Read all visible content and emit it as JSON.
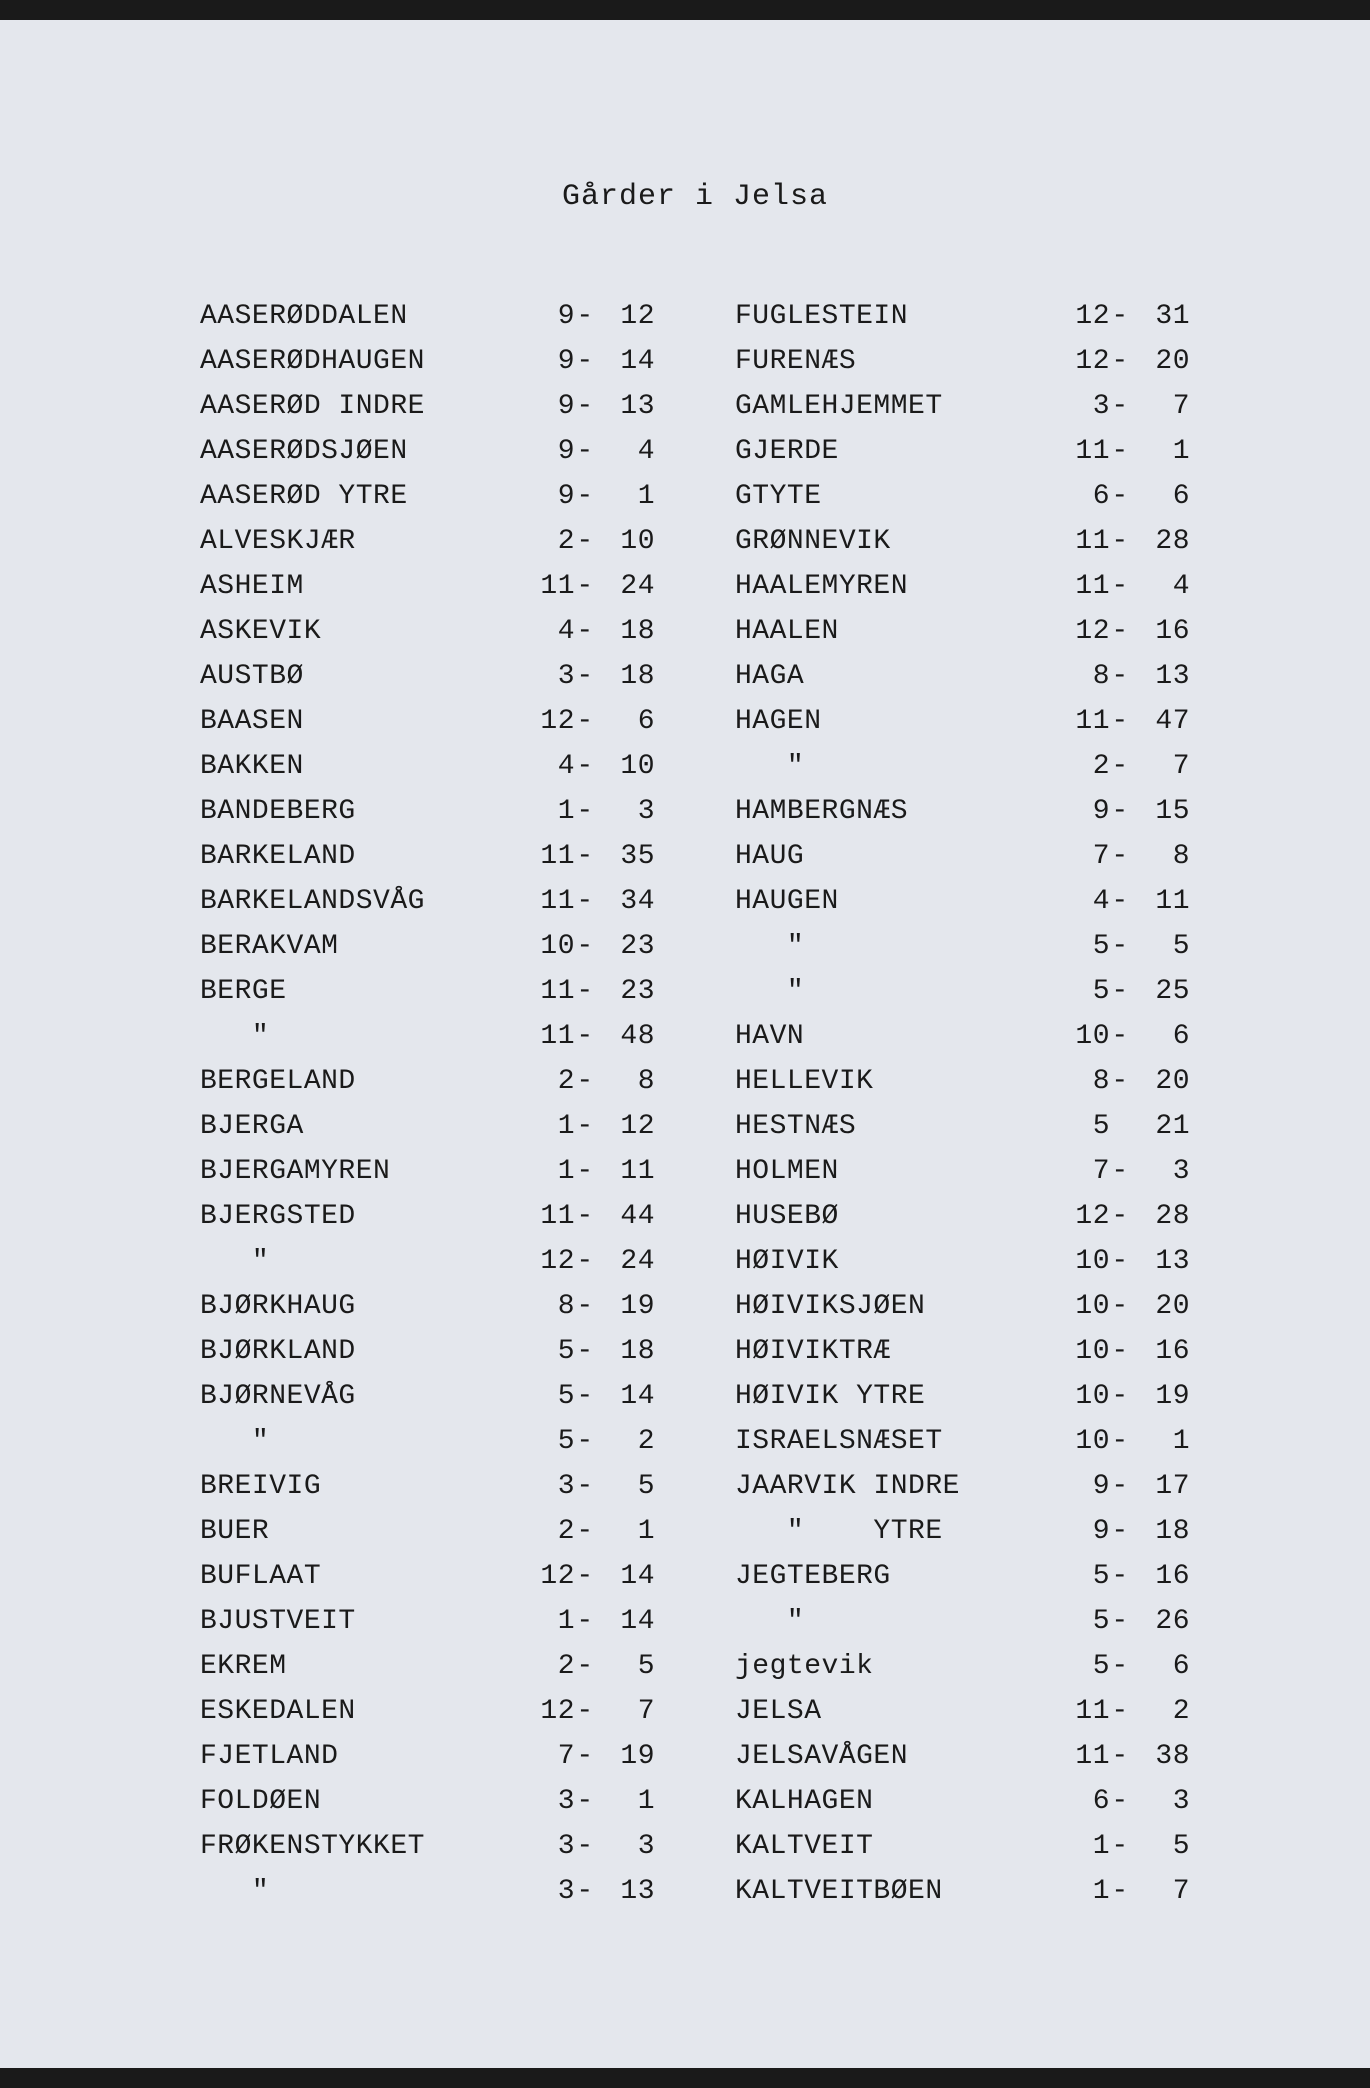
{
  "title": "Gårder i Jelsa",
  "background_color": "#e4e7ed",
  "text_color": "#1a1a1a",
  "font_family": "Courier New, monospace",
  "title_fontsize": 30,
  "row_fontsize": 28,
  "line_height": 45,
  "left_column": [
    {
      "name": "AASERØDDALEN",
      "a": "9",
      "b": "12"
    },
    {
      "name": "AASERØDHAUGEN",
      "a": "9",
      "b": "14"
    },
    {
      "name": "AASERØD INDRE",
      "a": "9",
      "b": "13"
    },
    {
      "name": "AASERØDSJØEN",
      "a": "9",
      "b": "4"
    },
    {
      "name": "AASERØD YTRE",
      "a": "9",
      "b": "1"
    },
    {
      "name": "ALVESKJÆR",
      "a": "2",
      "b": "10"
    },
    {
      "name": "ASHEIM",
      "a": "11",
      "b": "24"
    },
    {
      "name": "ASKEVIK",
      "a": "4",
      "b": "18"
    },
    {
      "name": "AUSTBØ",
      "a": "3",
      "b": "18"
    },
    {
      "name": "BAASEN",
      "a": "12",
      "b": "6"
    },
    {
      "name": "BAKKEN",
      "a": "4",
      "b": "10"
    },
    {
      "name": "BANDEBERG",
      "a": "1",
      "b": "3"
    },
    {
      "name": "BARKELAND",
      "a": "11",
      "b": "35"
    },
    {
      "name": "BARKELANDSVÅG",
      "a": "11",
      "b": "34"
    },
    {
      "name": "BERAKVAM",
      "a": "10",
      "b": "23"
    },
    {
      "name": "BERGE",
      "a": "11",
      "b": "23"
    },
    {
      "name": "   \"",
      "a": "11",
      "b": "48",
      "ditto": true
    },
    {
      "name": "BERGELAND",
      "a": "2",
      "b": "8"
    },
    {
      "name": "BJERGA",
      "a": "1",
      "b": "12"
    },
    {
      "name": "BJERGAMYREN",
      "a": "1",
      "b": "11"
    },
    {
      "name": "BJERGSTED",
      "a": "11",
      "b": "44"
    },
    {
      "name": "   \"",
      "a": "12",
      "b": "24",
      "ditto": true
    },
    {
      "name": "BJØRKHAUG",
      "a": "8",
      "b": "19"
    },
    {
      "name": "BJØRKLAND",
      "a": "5",
      "b": "18"
    },
    {
      "name": "BJØRNEVÅG",
      "a": "5",
      "b": "14"
    },
    {
      "name": "   \"",
      "a": "5",
      "b": "2",
      "ditto": true
    },
    {
      "name": "BREIVIG",
      "a": "3",
      "b": "5"
    },
    {
      "name": "BUER",
      "a": "2",
      "b": "1"
    },
    {
      "name": "BUFLAAT",
      "a": "12",
      "b": "14"
    },
    {
      "name": "BJUSTVEIT",
      "a": "1",
      "b": "14"
    },
    {
      "name": "EKREM",
      "a": "2",
      "b": "5"
    },
    {
      "name": "ESKEDALEN",
      "a": "12",
      "b": "7"
    },
    {
      "name": "FJETLAND",
      "a": "7",
      "b": "19"
    },
    {
      "name": "FOLDØEN",
      "a": "3",
      "b": "1"
    },
    {
      "name": "FRØKENSTYKKET",
      "a": "3",
      "b": "3"
    },
    {
      "name": "   \"",
      "a": "3",
      "b": "13",
      "ditto": true
    }
  ],
  "right_column": [
    {
      "name": "FUGLESTEIN",
      "a": "12",
      "b": "31"
    },
    {
      "name": "FURENÆS",
      "a": "12",
      "b": "20"
    },
    {
      "name": "GAMLEHJEMMET",
      "a": "3",
      "b": "7"
    },
    {
      "name": "GJERDE",
      "a": "11",
      "b": "1"
    },
    {
      "name": "GTYTE",
      "a": "6",
      "b": "6"
    },
    {
      "name": "GRØNNEVIK",
      "a": "11",
      "b": "28"
    },
    {
      "name": "HAALEMYREN",
      "a": "11",
      "b": "4"
    },
    {
      "name": "HAALEN",
      "a": "12",
      "b": "16"
    },
    {
      "name": "HAGA",
      "a": "8",
      "b": "13"
    },
    {
      "name": "HAGEN",
      "a": "11",
      "b": "47"
    },
    {
      "name": "   \"",
      "a": "2",
      "b": "7",
      "ditto": true
    },
    {
      "name": "HAMBERGNÆS",
      "a": "9",
      "b": "15"
    },
    {
      "name": "HAUG",
      "a": "7",
      "b": "8"
    },
    {
      "name": "HAUGEN",
      "a": "4",
      "b": "11"
    },
    {
      "name": "   \"",
      "a": "5",
      "b": "5",
      "ditto": true
    },
    {
      "name": "   \"",
      "a": "5",
      "b": "25",
      "ditto": true
    },
    {
      "name": "HAVN",
      "a": "10",
      "b": "6"
    },
    {
      "name": "HELLEVIK",
      "a": "8",
      "b": "20"
    },
    {
      "name": "HESTNÆS",
      "a": "5",
      "b": "21",
      "nodash": true
    },
    {
      "name": "HOLMEN",
      "a": "7",
      "b": "3"
    },
    {
      "name": "HUSEBØ",
      "a": "12",
      "b": "28"
    },
    {
      "name": "HØIVIK",
      "a": "10",
      "b": "13"
    },
    {
      "name": "HØIVIKSJØEN",
      "a": "10",
      "b": "20"
    },
    {
      "name": "HØIVIKTRÆ",
      "a": "10",
      "b": "16"
    },
    {
      "name": "HØIVIK YTRE",
      "a": "10",
      "b": "19"
    },
    {
      "name": "ISRAELSNÆSET",
      "a": "10",
      "b": "1"
    },
    {
      "name": "JAARVIK INDRE",
      "a": "9",
      "b": "17"
    },
    {
      "name": "   \"    YTRE",
      "a": "9",
      "b": "18"
    },
    {
      "name": "JEGTEBERG",
      "a": "5",
      "b": "16"
    },
    {
      "name": "   \"",
      "a": "5",
      "b": "26",
      "ditto": true
    },
    {
      "name": "jegtevik",
      "a": "5",
      "b": "6"
    },
    {
      "name": "JELSA",
      "a": "11",
      "b": "2"
    },
    {
      "name": "JELSAVÅGEN",
      "a": "11",
      "b": "38"
    },
    {
      "name": "KALHAGEN",
      "a": "6",
      "b": "3"
    },
    {
      "name": "KALTVEIT",
      "a": "1",
      "b": "5"
    },
    {
      "name": "KALTVEITBØEN",
      "a": "1",
      "b": "7"
    }
  ]
}
